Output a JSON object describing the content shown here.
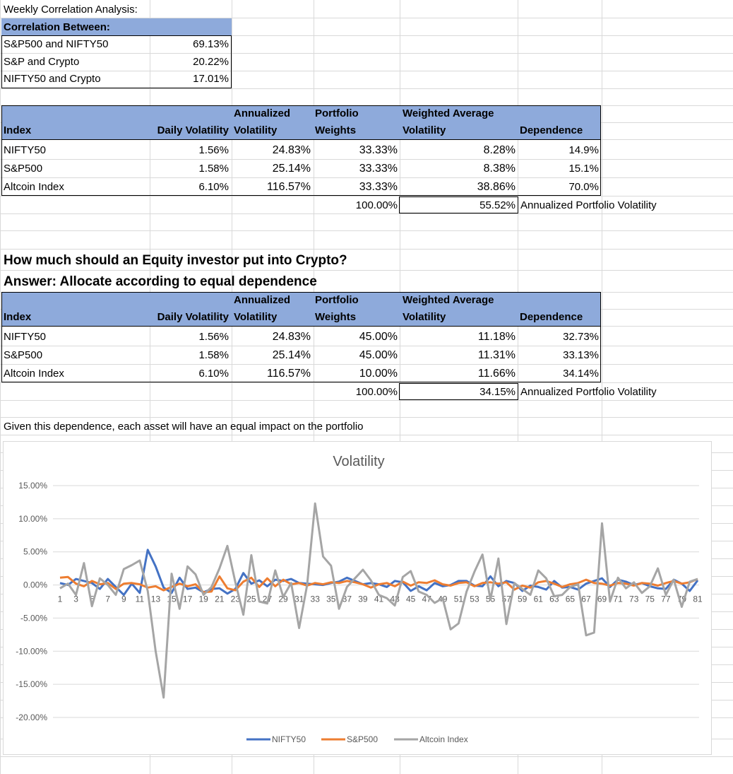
{
  "title": "Weekly Correlation Analysis:",
  "correlation": {
    "header": "Correlation Between:",
    "rows": [
      {
        "label": "S&P500 and NIFTY50",
        "value": "69.13%"
      },
      {
        "label": "S&P and Crypto",
        "value": "20.22%"
      },
      {
        "label": "NIFTY50 and Crypto",
        "value": "17.01%"
      }
    ]
  },
  "columns": {
    "index": "Index",
    "daily_vol": "Daily Volatility",
    "ann_line1": "Annualized",
    "ann_line2": "Volatility",
    "pw_line1": "Portfolio",
    "pw_line2": "Weights",
    "wav_line1": "Weighted Average",
    "wav_line2": "Volatility",
    "dependence": "Dependence"
  },
  "table1": {
    "rows": [
      {
        "index": "NIFTY50",
        "daily": "1.56%",
        "annual": "24.83%",
        "weight": "33.33%",
        "wavg": "8.28%",
        "dep": "14.9%"
      },
      {
        "index": "S&P500",
        "daily": "1.58%",
        "annual": "25.14%",
        "weight": "33.33%",
        "wavg": "8.38%",
        "dep": "15.1%"
      },
      {
        "index": "Altcoin Index",
        "daily": "6.10%",
        "annual": "116.57%",
        "weight": "33.33%",
        "wavg": "38.86%",
        "dep": "70.0%"
      }
    ],
    "total_weight": "100.00%",
    "portfolio_vol": "55.52%",
    "portfolio_vol_label": "Annualized Portfolio Volatility"
  },
  "question": "How much should an Equity investor put into Crypto?",
  "answer": "Answer: Allocate according to equal dependence",
  "table2": {
    "rows": [
      {
        "index": "NIFTY50",
        "daily": "1.56%",
        "annual": "24.83%",
        "weight": "45.00%",
        "wavg": "11.18%",
        "dep": "32.73%"
      },
      {
        "index": "S&P500",
        "daily": "1.58%",
        "annual": "25.14%",
        "weight": "45.00%",
        "wavg": "11.31%",
        "dep": "33.13%"
      },
      {
        "index": "Altcoin Index",
        "daily": "6.10%",
        "annual": "116.57%",
        "weight": "10.00%",
        "wavg": "11.66%",
        "dep": "34.14%"
      }
    ],
    "total_weight": "100.00%",
    "portfolio_vol": "34.15%",
    "portfolio_vol_label": "Annualized Portfolio Volatility"
  },
  "note": "Given this dependence, each asset will have an equal impact on the portfolio",
  "chart_data": {
    "type": "line",
    "title": "Volatility",
    "ylim": [
      -20,
      15
    ],
    "y_ticks": [
      15,
      10,
      5,
      0,
      -5,
      -10,
      -15,
      -20
    ],
    "y_tick_labels": [
      "15.00%",
      "10.00%",
      "5.00%",
      "0.00%",
      "-5.00%",
      "-10.00%",
      "-15.00%",
      "-20.00%"
    ],
    "x_tick_labels": [
      "1",
      "3",
      "5",
      "7",
      "9",
      "11",
      "13",
      "15",
      "17",
      "19",
      "21",
      "23",
      "25",
      "27",
      "29",
      "31",
      "33",
      "35",
      "37",
      "39",
      "41",
      "43",
      "45",
      "47",
      "49",
      "51",
      "53",
      "55",
      "57",
      "59",
      "61",
      "63",
      "65",
      "67",
      "69",
      "71",
      "73",
      "75",
      "77",
      "79",
      "81"
    ],
    "x": [
      1,
      2,
      3,
      4,
      5,
      6,
      7,
      8,
      9,
      10,
      11,
      12,
      13,
      14,
      15,
      16,
      17,
      18,
      19,
      20,
      21,
      22,
      23,
      24,
      25,
      26,
      27,
      28,
      29,
      30,
      31,
      32,
      33,
      34,
      35,
      36,
      37,
      38,
      39,
      40,
      41,
      42,
      43,
      44,
      45,
      46,
      47,
      48,
      49,
      50,
      51,
      52,
      53,
      54,
      55,
      56,
      57,
      58,
      59,
      60,
      61,
      62,
      63,
      64,
      65,
      66,
      67,
      68,
      69,
      70,
      71,
      72,
      73,
      74,
      75,
      76,
      77,
      78,
      79,
      80,
      81
    ],
    "grid": true,
    "legend": "bottom",
    "series": [
      {
        "name": "NIFTY50",
        "color": "#4472c4",
        "values": [
          0.3,
          0.0,
          0.9,
          0.6,
          0.3,
          -0.6,
          0.9,
          -0.3,
          -1.5,
          0.2,
          -1.2,
          5.3,
          2.8,
          -0.4,
          -1.2,
          1.1,
          -0.6,
          -0.4,
          -1.1,
          -0.6,
          -0.5,
          -1.3,
          -0.6,
          1.8,
          0.2,
          0.7,
          -0.2,
          0.8,
          0.6,
          0.9,
          0.3,
          0.2,
          0.1,
          0.0,
          0.3,
          0.5,
          1.1,
          0.6,
          0.1,
          0.3,
          0.1,
          -0.3,
          0.6,
          0.4,
          -0.9,
          -0.2,
          -0.8,
          0.3,
          -0.2,
          0.0,
          0.6,
          0.6,
          -0.1,
          -0.2,
          1.3,
          -0.2,
          0.6,
          0.3,
          -0.9,
          -0.1,
          -0.3,
          -0.7,
          0.6,
          -0.4,
          -0.3,
          -0.7,
          0.2,
          0.6,
          1.0,
          -0.3,
          0.8,
          0.5,
          0.0,
          0.3,
          -0.2,
          -0.5,
          -0.6,
          0.8,
          0.2,
          -0.9,
          0.7
        ]
      },
      {
        "name": "S&P500",
        "color": "#ed7d31",
        "values": [
          1.1,
          1.2,
          0.2,
          -0.2,
          0.6,
          0.1,
          0.3,
          -0.6,
          0.2,
          0.3,
          0.1,
          -0.4,
          -0.2,
          -0.8,
          -0.3,
          0.2,
          -0.2,
          0.1,
          -1.1,
          -1.0,
          1.3,
          -0.5,
          -0.8,
          0.5,
          1.1,
          -0.3,
          1.0,
          -0.2,
          0.8,
          0.1,
          0.3,
          -0.1,
          0.3,
          0.1,
          0.4,
          0.3,
          0.6,
          0.4,
          0.1,
          -0.4,
          0.1,
          0.3,
          -0.2,
          0.5,
          -0.1,
          0.4,
          0.3,
          0.7,
          0.1,
          -0.1,
          0.3,
          0.4,
          -0.2,
          0.3,
          0.4,
          0.2,
          0.4,
          -0.7,
          -0.1,
          -0.4,
          0.4,
          0.6,
          0.2,
          -0.3,
          0.1,
          0.3,
          0.8,
          0.3,
          0.2,
          -0.1,
          0.3,
          0.2,
          -0.1,
          0.3,
          0.2,
          -0.1,
          0.3,
          0.6,
          0.2,
          0.4,
          0.9
        ]
      },
      {
        "name": "Altcoin Index",
        "color": "#a5a5a5",
        "values": [
          -0.5,
          0.2,
          -1.5,
          3.3,
          -3.2,
          1.0,
          0.0,
          -1.5,
          2.4,
          3.0,
          3.7,
          -0.9,
          -10.0,
          -17.0,
          1.7,
          -3.6,
          2.8,
          1.6,
          -1.5,
          -0.3,
          2.5,
          5.9,
          0.4,
          -4.5,
          4.5,
          -2.5,
          -2.8,
          2.2,
          -1.8,
          0.3,
          -6.5,
          0.0,
          12.3,
          4.3,
          2.9,
          -3.6,
          -0.3,
          1.0,
          2.3,
          0.7,
          -1.5,
          -2.0,
          -3.1,
          1.2,
          2.1,
          -1.0,
          -1.5,
          -2.7,
          -2.0,
          -6.7,
          -5.8,
          -1.0,
          2.0,
          4.6,
          -2.2,
          4.0,
          -5.9,
          0.3,
          -0.6,
          -1.5,
          2.2,
          1.0,
          -1.7,
          -1.5,
          -0.3,
          0.1,
          -7.6,
          -7.2,
          9.3,
          -2.5,
          1.1,
          -0.5,
          0.4,
          -1.2,
          -0.2,
          2.5,
          -1.5,
          0.8,
          -3.3,
          0.5,
          0.9
        ]
      }
    ]
  }
}
